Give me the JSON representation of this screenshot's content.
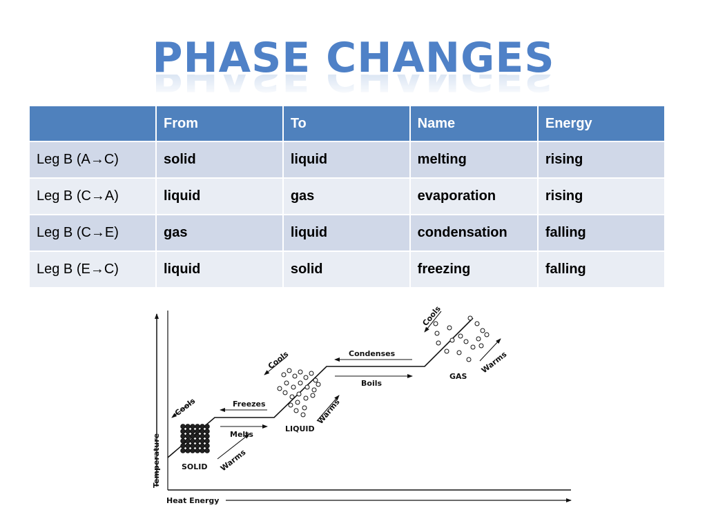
{
  "title": "PHASE CHANGES",
  "table": {
    "headers": [
      "",
      "From",
      "To",
      "Name",
      "Energy"
    ],
    "rows": [
      [
        "Leg B (A→C)",
        "solid",
        "liquid",
        "melting",
        "rising"
      ],
      [
        "Leg B (C→A)",
        "liquid",
        "gas",
        "evaporation",
        "rising"
      ],
      [
        "Leg B (C→E)",
        "gas",
        "liquid",
        "condensation",
        "falling"
      ],
      [
        "Leg B (E→C)",
        "liquid",
        "solid",
        "freezing",
        "falling"
      ]
    ]
  },
  "diagram": {
    "y_axis_label": "Temperature",
    "x_axis_label": "Heat Energy",
    "labels": {
      "cools_solid": "Cools",
      "freezes": "Freezes",
      "melts": "Melts",
      "warms_solid": "Warms",
      "solid": "SOLID",
      "cools_liquid": "Cools",
      "liquid": "LIQUID",
      "warms_liquid": "Warms",
      "condenses": "Condenses",
      "boils": "Boils",
      "cools_gas": "Cools",
      "gas": "GAS",
      "warms_gas": "Warms"
    }
  },
  "colors": {
    "accent": "#4f81bd",
    "title": "#4f81c7",
    "row_odd": "#d0d8e8",
    "row_even": "#e9edf4"
  }
}
